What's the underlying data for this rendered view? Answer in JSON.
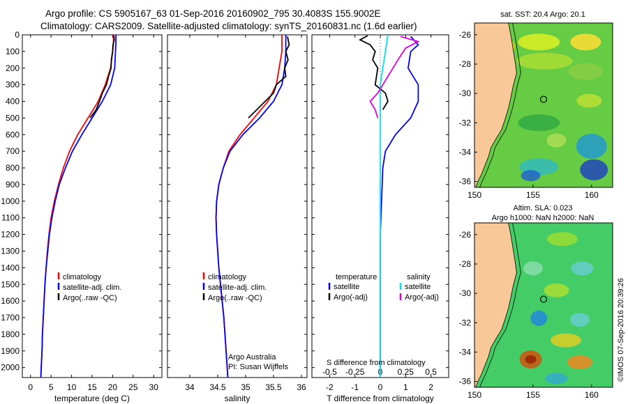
{
  "header": {
    "line1": "Argo profile: CS 5905167_63 01-Sep-2016 20160902_795 30.4083S 155.9002E",
    "line2": "Climatology: CARS2009. Satellite-adjusted climatology: synTS_20160831.nc (1.6d earlier)"
  },
  "chart_data": [
    {
      "type": "line",
      "name": "temperature-profile",
      "xlabel": "temperature (deg C)",
      "ylabel": "",
      "xlim": [
        -2,
        32
      ],
      "ylim": [
        2060,
        0
      ],
      "xticks": [
        0,
        5,
        10,
        15,
        20,
        25,
        30
      ],
      "yticks": [
        0,
        100,
        200,
        300,
        400,
        500,
        600,
        700,
        800,
        900,
        1000,
        1100,
        1200,
        1300,
        1400,
        1500,
        1600,
        1700,
        1800,
        1900,
        2000
      ],
      "legend": [
        "climatology",
        "satellite-adj. clim.",
        "Argo(..raw -QC)"
      ],
      "legend_position": "lower-middle",
      "series": [
        {
          "name": "climatology",
          "color": "#ff0000",
          "points": [
            [
              20.2,
              0
            ],
            [
              20.2,
              50
            ],
            [
              20.0,
              100
            ],
            [
              19.5,
              200
            ],
            [
              18.2,
              300
            ],
            [
              16.5,
              400
            ],
            [
              14.0,
              500
            ],
            [
              11.5,
              600
            ],
            [
              9.5,
              700
            ],
            [
              8.0,
              800
            ],
            [
              6.8,
              900
            ],
            [
              5.8,
              1000
            ],
            [
              5.0,
              1100
            ],
            [
              4.5,
              1200
            ],
            [
              4.1,
              1300
            ],
            [
              3.8,
              1400
            ],
            [
              3.5,
              1500
            ],
            [
              3.3,
              1600
            ],
            [
              3.1,
              1700
            ],
            [
              2.9,
              1800
            ],
            [
              2.8,
              1900
            ],
            [
              2.6,
              2000
            ],
            [
              2.5,
              2060
            ]
          ]
        },
        {
          "name": "satellite-adj. clim.",
          "color": "#0000ff",
          "points": [
            [
              20.8,
              0
            ],
            [
              20.8,
              50
            ],
            [
              20.7,
              100
            ],
            [
              20.5,
              200
            ],
            [
              19.5,
              300
            ],
            [
              17.5,
              400
            ],
            [
              15.0,
              500
            ],
            [
              12.5,
              600
            ],
            [
              10.2,
              700
            ],
            [
              8.5,
              800
            ],
            [
              7.0,
              900
            ],
            [
              6.0,
              1000
            ],
            [
              5.2,
              1100
            ],
            [
              4.6,
              1200
            ],
            [
              4.2,
              1300
            ],
            [
              3.8,
              1400
            ],
            [
              3.5,
              1500
            ],
            [
              3.3,
              1600
            ],
            [
              3.1,
              1700
            ],
            [
              2.9,
              1800
            ],
            [
              2.8,
              1900
            ],
            [
              2.6,
              2000
            ],
            [
              2.5,
              2060
            ]
          ]
        },
        {
          "name": "Argo(..raw -QC)",
          "color": "#000000",
          "points": [
            [
              20.3,
              5
            ],
            [
              20.4,
              30
            ],
            [
              20.1,
              60
            ],
            [
              20.0,
              100
            ],
            [
              19.7,
              150
            ],
            [
              19.6,
              200
            ],
            [
              19.0,
              250
            ],
            [
              18.5,
              300
            ],
            [
              17.5,
              350
            ],
            [
              16.8,
              400
            ],
            [
              16.0,
              450
            ],
            [
              14.5,
              500
            ]
          ]
        }
      ]
    },
    {
      "type": "line",
      "name": "salinity-profile",
      "xlabel": "salinity",
      "xlim": [
        33.6,
        36.1
      ],
      "ylim": [
        2060,
        0
      ],
      "xticks": [
        34,
        34.5,
        35,
        35.5,
        36
      ],
      "legend": [
        "climatology",
        "satellite-adj. clim.",
        "Argo(..raw -QC)"
      ],
      "legend_position": "lower-middle",
      "series": [
        {
          "name": "climatology",
          "color": "#ff0000",
          "points": [
            [
              35.65,
              0
            ],
            [
              35.65,
              100
            ],
            [
              35.6,
              200
            ],
            [
              35.55,
              300
            ],
            [
              35.4,
              400
            ],
            [
              35.15,
              500
            ],
            [
              34.9,
              600
            ],
            [
              34.7,
              700
            ],
            [
              34.6,
              800
            ],
            [
              34.52,
              900
            ],
            [
              34.48,
              1000
            ],
            [
              34.47,
              1100
            ],
            [
              34.48,
              1200
            ],
            [
              34.5,
              1300
            ],
            [
              34.52,
              1400
            ],
            [
              34.55,
              1500
            ],
            [
              34.58,
              1600
            ],
            [
              34.61,
              1700
            ],
            [
              34.63,
              1800
            ],
            [
              34.65,
              1900
            ],
            [
              34.67,
              2000
            ],
            [
              34.68,
              2060
            ]
          ]
        },
        {
          "name": "satellite-adj. clim.",
          "color": "#0000ff",
          "points": [
            [
              35.72,
              0
            ],
            [
              35.72,
              100
            ],
            [
              35.7,
              200
            ],
            [
              35.65,
              300
            ],
            [
              35.5,
              400
            ],
            [
              35.25,
              500
            ],
            [
              34.95,
              600
            ],
            [
              34.72,
              700
            ],
            [
              34.6,
              800
            ],
            [
              34.52,
              900
            ],
            [
              34.48,
              1000
            ],
            [
              34.47,
              1100
            ],
            [
              34.48,
              1200
            ],
            [
              34.5,
              1300
            ],
            [
              34.52,
              1400
            ],
            [
              34.55,
              1500
            ],
            [
              34.58,
              1600
            ],
            [
              34.61,
              1700
            ],
            [
              34.63,
              1800
            ],
            [
              34.65,
              1900
            ],
            [
              34.67,
              2000
            ],
            [
              34.68,
              2060
            ]
          ]
        },
        {
          "name": "Argo(..raw -QC)",
          "color": "#000000",
          "points": [
            [
              35.75,
              10
            ],
            [
              35.78,
              60
            ],
            [
              35.72,
              100
            ],
            [
              35.76,
              150
            ],
            [
              35.7,
              200
            ],
            [
              35.72,
              250
            ],
            [
              35.55,
              300
            ],
            [
              35.5,
              350
            ],
            [
              35.35,
              400
            ],
            [
              35.2,
              450
            ],
            [
              35.05,
              500
            ]
          ]
        }
      ]
    },
    {
      "type": "line",
      "name": "difference-profile",
      "xlabel": "T difference from climatology",
      "xlabel_top": "S difference from climatology",
      "xlim": [
        -2.7,
        2.7
      ],
      "ylim": [
        2060,
        0
      ],
      "xticks": [
        -2,
        -1,
        0,
        1,
        2
      ],
      "s_ticks": [
        "-0.5",
        "-0.25",
        "0",
        "0.25",
        "0.5"
      ],
      "s_tick_positions": [
        -2,
        -1,
        0,
        1,
        2
      ],
      "legend": {
        "left_title": "temperature",
        "right_title": "salinity",
        "entries": [
          "satellite",
          "Argo(-adj)",
          "satellite",
          "Argo(-adj)"
        ]
      },
      "legend_position": "lower-middle",
      "series": [
        {
          "name": "T satellite",
          "color": "#0000ff",
          "points": [
            [
              1.2,
              10
            ],
            [
              1.5,
              60
            ],
            [
              1.2,
              100
            ],
            [
              1.1,
              200
            ],
            [
              1.5,
              300
            ],
            [
              1.5,
              400
            ],
            [
              1.2,
              500
            ],
            [
              0.6,
              600
            ],
            [
              0.2,
              700
            ],
            [
              0.1,
              800
            ],
            [
              0.05,
              1000
            ],
            [
              0,
              1200
            ],
            [
              0,
              2060
            ]
          ]
        },
        {
          "name": "T Argo(-adj)",
          "color": "#000000",
          "points": [
            [
              -0.5,
              5
            ],
            [
              -0.8,
              30
            ],
            [
              -0.4,
              60
            ],
            [
              -0.2,
              100
            ],
            [
              -0.3,
              150
            ],
            [
              -0.1,
              200
            ],
            [
              -0.2,
              300
            ],
            [
              0.2,
              350
            ],
            [
              0.3,
              400
            ],
            [
              0.1,
              450
            ]
          ]
        },
        {
          "name": "S satellite",
          "color": "#00e5ee",
          "points": [
            [
              0.3,
              0
            ],
            [
              0.2,
              100
            ],
            [
              0.1,
              200
            ],
            [
              0,
              300
            ],
            [
              0,
              500
            ],
            [
              0,
              800
            ],
            [
              0,
              2060
            ]
          ]
        },
        {
          "name": "S Argo(-adj)",
          "color": "#dd00dd",
          "points": [
            [
              0.8,
              10
            ],
            [
              1.5,
              40
            ],
            [
              1.0,
              80
            ],
            [
              0.7,
              150
            ],
            [
              0.5,
              200
            ],
            [
              -0.1,
              350
            ],
            [
              -0.4,
              400
            ],
            [
              -0.2,
              450
            ],
            [
              -0.1,
              500
            ]
          ]
        }
      ],
      "annotation": {
        "line1": "Argo Australia",
        "line2": "PI: Susan Wijffels"
      }
    }
  ],
  "maps": [
    {
      "title": "sat. SST: 20.4  Argo: 20.1",
      "xlim": [
        150,
        161.8
      ],
      "ylim": [
        -36.4,
        -25.2
      ],
      "xticks": [
        150,
        155,
        160
      ],
      "yticks": [
        -26,
        -28,
        -30,
        -32,
        -34,
        -36
      ],
      "float_lon": 155.9,
      "float_lat": -30.4,
      "colors": {
        "land": "#f8c898",
        "sea": "#66cc44"
      }
    },
    {
      "title": "Altim. SLA: 0.023",
      "title2": "Argo h1000: NaN  h2000: NaN",
      "xlim": [
        150,
        161.8
      ],
      "ylim": [
        -36.4,
        -25.2
      ],
      "xticks": [
        150,
        155,
        160
      ],
      "yticks": [
        -26,
        -28,
        -30,
        -32,
        -34,
        -36
      ],
      "float_lon": 155.9,
      "float_lat": -30.4,
      "colors": {
        "land": "#f8c898",
        "sea": "#44cc66"
      }
    }
  ],
  "footer": {
    "credit": "©IMOS 07-Sep-2016 20:39:26"
  }
}
